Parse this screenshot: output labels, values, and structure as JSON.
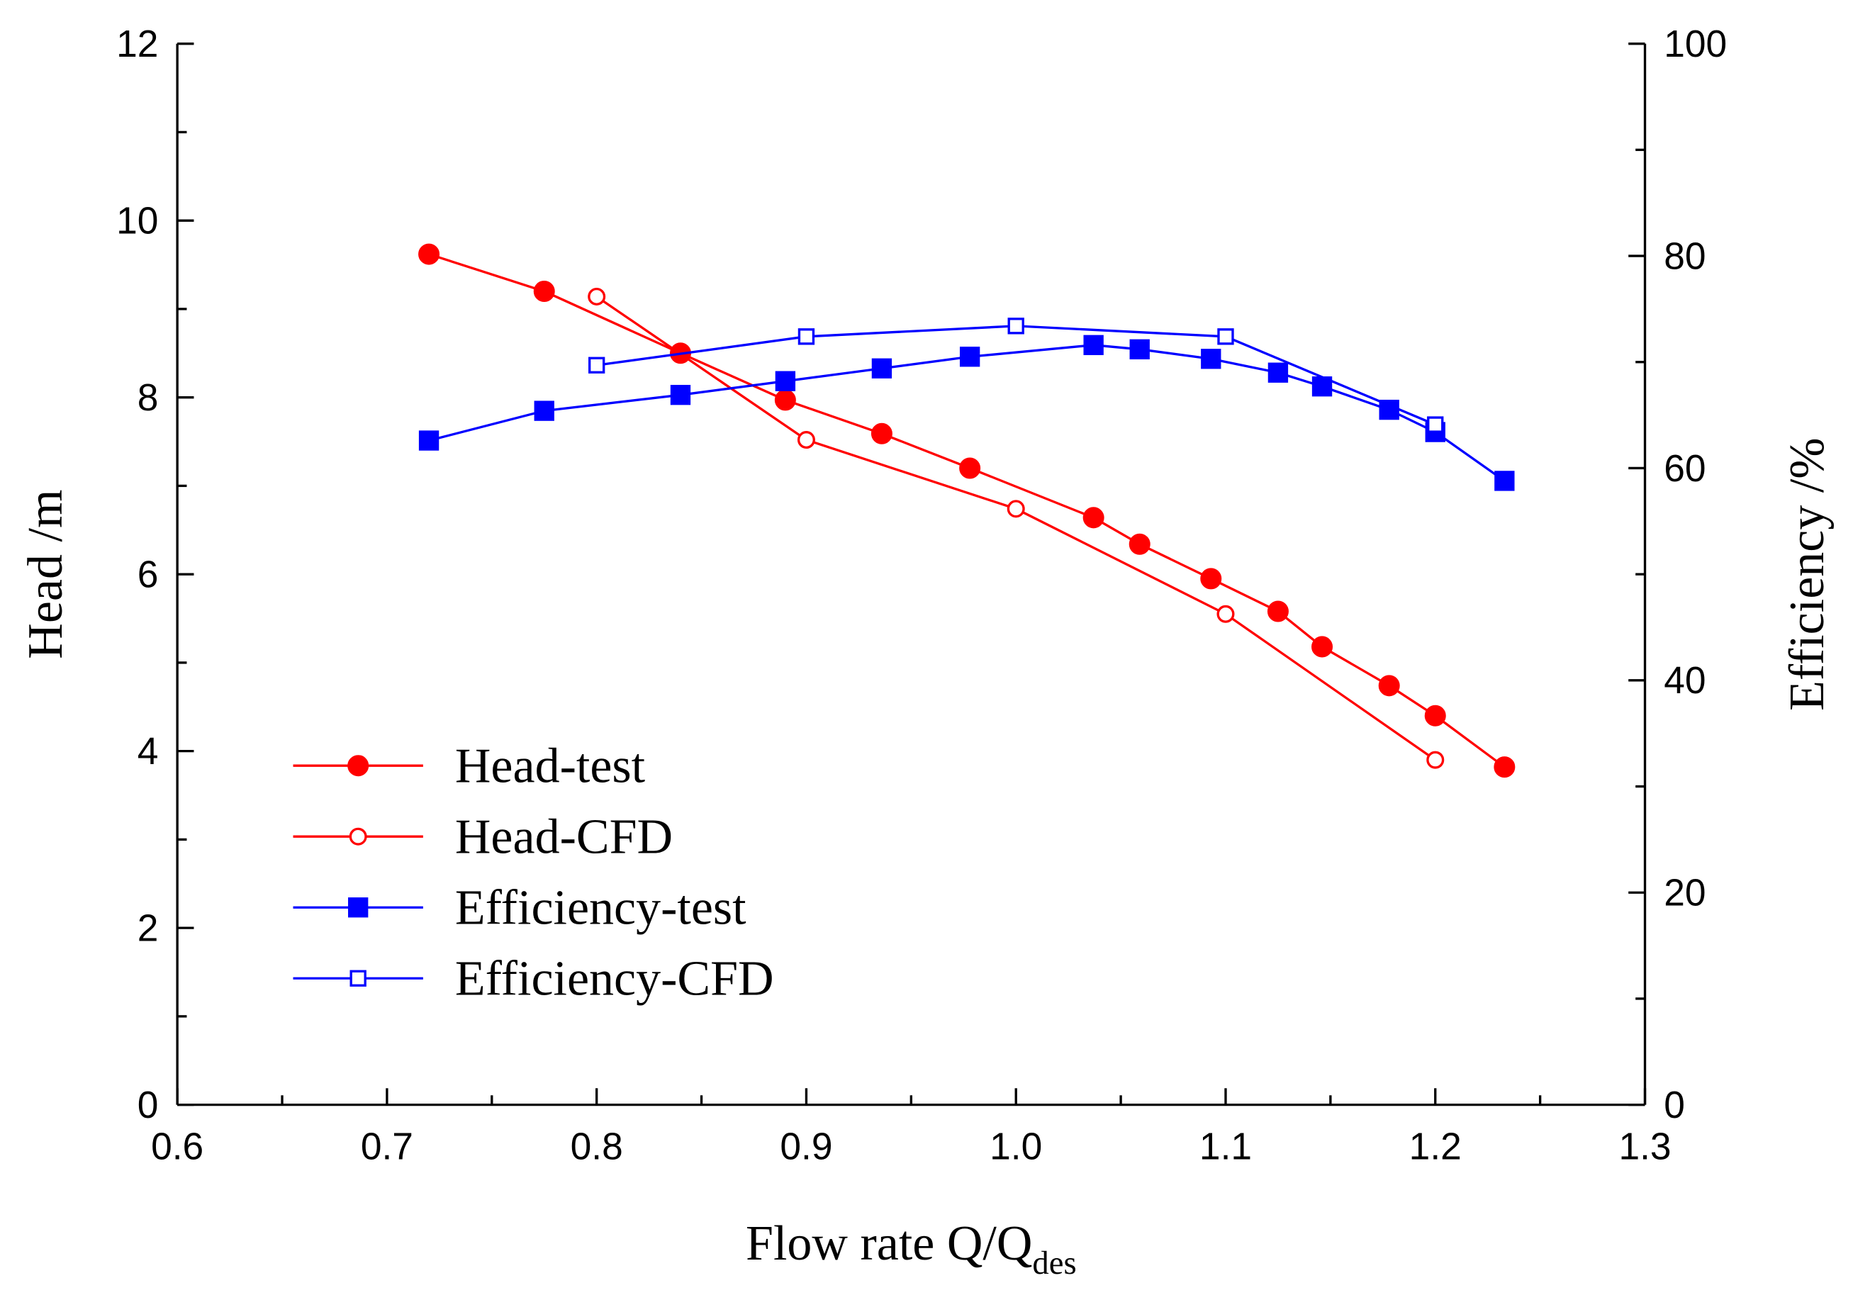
{
  "chart_data": {
    "type": "line",
    "xlabel": "Flow rate Q/Q",
    "xlabel_sub": "des",
    "ylabel_left": "Head /m",
    "ylabel_right": "Efficiency /%",
    "xlim": [
      0.6,
      1.3
    ],
    "ylim_left": [
      0,
      12
    ],
    "ylim_right": [
      0,
      100
    ],
    "x_ticks": [
      "0.6",
      "0.7",
      "0.8",
      "0.9",
      "1.0",
      "1.1",
      "1.2",
      "1.3"
    ],
    "y_left_ticks": [
      "0",
      "2",
      "4",
      "6",
      "8",
      "10",
      "12"
    ],
    "y_right_ticks": [
      "0",
      "20",
      "40",
      "60",
      "80",
      "100"
    ],
    "legend_position": "bottom-left",
    "series": [
      {
        "name": "Head-test",
        "axis": "left",
        "color": "#ff0000",
        "marker": "filled-circle",
        "x": [
          0.72,
          0.775,
          0.84,
          0.89,
          0.936,
          0.978,
          1.037,
          1.059,
          1.093,
          1.125,
          1.146,
          1.178,
          1.2,
          1.233
        ],
        "y": [
          9.62,
          9.2,
          8.5,
          7.97,
          7.59,
          7.2,
          6.64,
          6.34,
          5.95,
          5.58,
          5.18,
          4.74,
          4.4,
          3.82
        ]
      },
      {
        "name": "Head-CFD",
        "axis": "left",
        "color": "#ff0000",
        "marker": "open-circle",
        "x": [
          0.8,
          0.9,
          1.0,
          1.1,
          1.2
        ],
        "y": [
          9.14,
          7.52,
          6.74,
          5.55,
          3.9
        ]
      },
      {
        "name": "Efficiency-test",
        "axis": "right",
        "color": "#0000ff",
        "marker": "filled-square",
        "x": [
          0.72,
          0.775,
          0.84,
          0.89,
          0.936,
          0.978,
          1.037,
          1.059,
          1.093,
          1.125,
          1.146,
          1.178,
          1.2,
          1.233
        ],
        "y": [
          62.6,
          65.4,
          66.9,
          68.2,
          69.4,
          70.5,
          71.6,
          71.2,
          70.3,
          69.0,
          67.7,
          65.5,
          63.4,
          58.8
        ]
      },
      {
        "name": "Efficiency-CFD",
        "axis": "right",
        "color": "#0000ff",
        "marker": "open-square",
        "x": [
          0.8,
          0.9,
          1.0,
          1.1,
          1.2
        ],
        "y": [
          69.7,
          72.4,
          73.4,
          72.4,
          64.1
        ]
      }
    ]
  }
}
